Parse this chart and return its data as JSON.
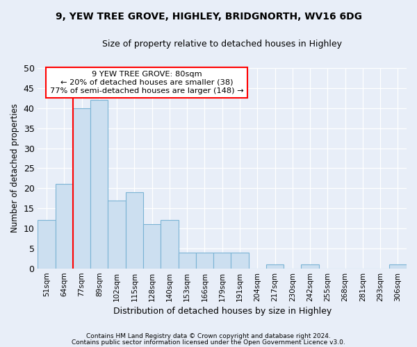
{
  "title1": "9, YEW TREE GROVE, HIGHLEY, BRIDGNORTH, WV16 6DG",
  "title2": "Size of property relative to detached houses in Highley",
  "xlabel": "Distribution of detached houses by size in Highley",
  "ylabel": "Number of detached properties",
  "categories": [
    "51sqm",
    "64sqm",
    "77sqm",
    "89sqm",
    "102sqm",
    "115sqm",
    "128sqm",
    "140sqm",
    "153sqm",
    "166sqm",
    "179sqm",
    "191sqm",
    "204sqm",
    "217sqm",
    "230sqm",
    "242sqm",
    "255sqm",
    "268sqm",
    "281sqm",
    "293sqm",
    "306sqm"
  ],
  "values": [
    12,
    21,
    40,
    42,
    17,
    19,
    11,
    12,
    4,
    4,
    4,
    4,
    0,
    1,
    0,
    1,
    0,
    0,
    0,
    0,
    1
  ],
  "bar_color": "#ccdff0",
  "bar_edge_color": "#7ab3d4",
  "annotation_line1": "9 YEW TREE GROVE: 80sqm",
  "annotation_line2": "← 20% of detached houses are smaller (38)",
  "annotation_line3": "77% of semi-detached houses are larger (148) →",
  "red_line_bin_index": 2,
  "ylim": [
    0,
    50
  ],
  "yticks": [
    0,
    5,
    10,
    15,
    20,
    25,
    30,
    35,
    40,
    45,
    50
  ],
  "footer1": "Contains HM Land Registry data © Crown copyright and database right 2024.",
  "footer2": "Contains public sector information licensed under the Open Government Licence v3.0.",
  "background_color": "#e8eef8",
  "plot_background": "#e8eef8"
}
